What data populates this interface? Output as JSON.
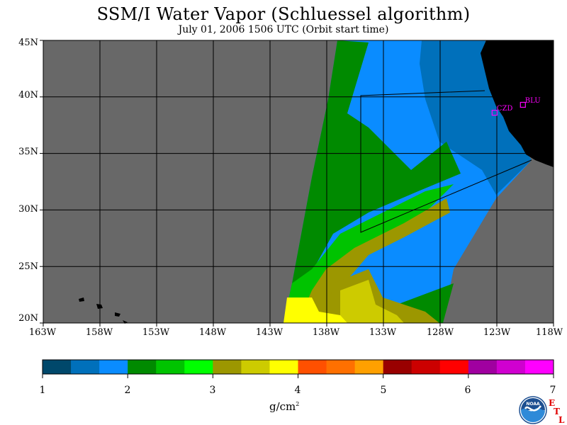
{
  "title": "SSM/I Water Vapor (Schluessel algorithm)",
  "subtitle": "July 01, 2006  1506 UTC  (Orbit start time)",
  "map": {
    "lat_labels": [
      "45N",
      "40N",
      "35N",
      "30N",
      "25N",
      "20N"
    ],
    "lat_values": [
      45,
      40,
      35,
      30,
      25,
      20
    ],
    "lon_labels": [
      "163W",
      "158W",
      "153W",
      "148W",
      "143W",
      "138W",
      "133W",
      "128W",
      "123W",
      "118W"
    ],
    "lon_values": [
      -163,
      -158,
      -153,
      -148,
      -143,
      -138,
      -133,
      -128,
      -123,
      -118
    ],
    "lat_range": [
      20,
      45
    ],
    "lon_range": [
      -163,
      -118
    ],
    "grid": true,
    "stations": [
      {
        "id": "CZD",
        "lat": 38.6,
        "lon": -123.2
      },
      {
        "id": "BLU",
        "lat": 39.3,
        "lon": -120.7
      }
    ],
    "colors": {
      "ocean_no_data": "#686868",
      "land": "#000000",
      "grid": "#000000",
      "station": "#ff00ff",
      "background": "#ffffff"
    }
  },
  "colorbar": {
    "tick_labels": [
      "1",
      "2",
      "3",
      "4",
      "5",
      "6",
      "7"
    ],
    "range": [
      1,
      7
    ],
    "colors": [
      "#00486b",
      "#0070bb",
      "#0a8cff",
      "#008a00",
      "#00c300",
      "#00ff00",
      "#9c9700",
      "#cdcb00",
      "#ffff00",
      "#ff5000",
      "#ff7000",
      "#ffa000",
      "#990000",
      "#cc0000",
      "#ff0000",
      "#a000a0",
      "#d000d0",
      "#ff00ff"
    ],
    "units": "g/cm",
    "units_superscript": "2"
  },
  "logos": {
    "noaa_text": "NOAA",
    "etl_letters": [
      "E",
      "T",
      "L"
    ]
  }
}
